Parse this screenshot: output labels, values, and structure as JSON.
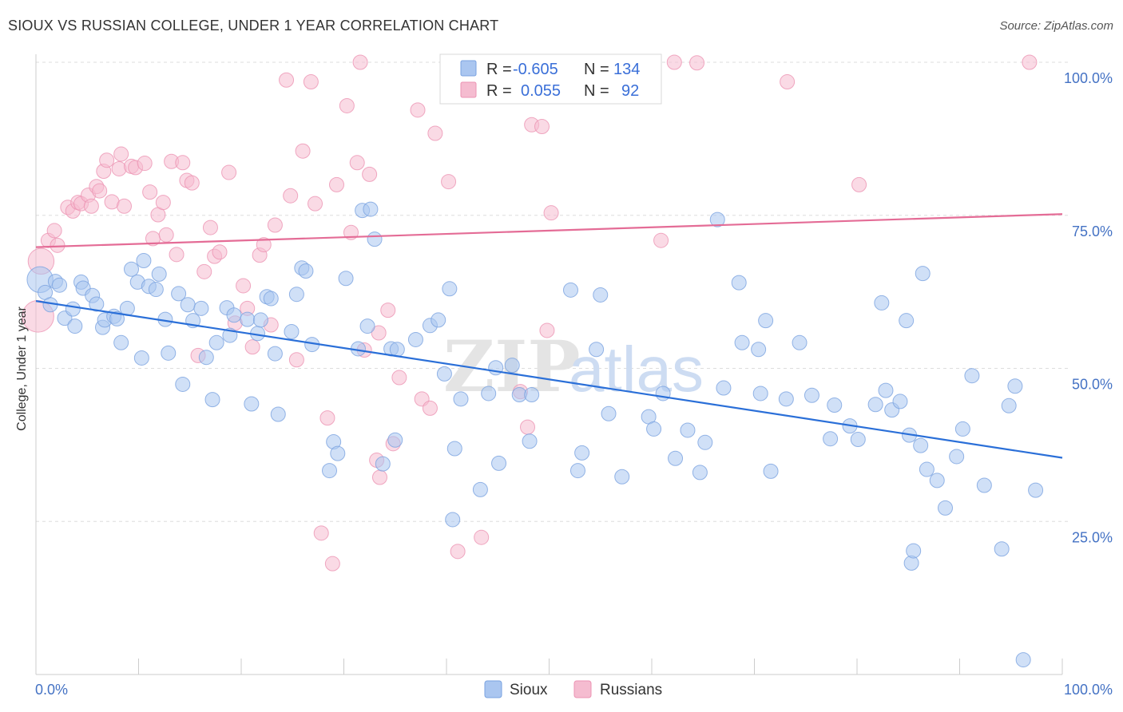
{
  "title": "SIOUX VS RUSSIAN COLLEGE, UNDER 1 YEAR CORRELATION CHART",
  "source": "Source: ZipAtlas.com",
  "watermark": {
    "zip": "ZIP",
    "atlas": "atlas"
  },
  "colors": {
    "sioux_fill": "#aac6f0",
    "sioux_stroke": "#7aa3e0",
    "sioux_line": "#2a6fd8",
    "russians_fill": "#f5bcd0",
    "russians_stroke": "#ec93b3",
    "russians_line": "#e46c96",
    "tick_label": "#4472c4",
    "grid": "#dddddd"
  },
  "legend": {
    "rows": [
      {
        "r_label": "R =",
        "r_value": "-0.605",
        "n_label": "N =",
        "n_value": "134"
      },
      {
        "r_label": "R =",
        "r_value": "0.055",
        "n_label": "N =",
        "n_value": "92"
      }
    ]
  },
  "bottom_legend": [
    "Sioux",
    "Russians"
  ],
  "chart_data": {
    "type": "scatter",
    "title": "SIOUX VS RUSSIAN COLLEGE, UNDER 1 YEAR CORRELATION CHART",
    "xlabel": "",
    "ylabel": "College, Under 1 year",
    "xlim": [
      0,
      100
    ],
    "ylim": [
      0,
      100
    ],
    "x_tick_labels": [
      "0.0%",
      "100.0%"
    ],
    "y_tick_labels": [
      "100.0%",
      "75.0%",
      "50.0%",
      "25.0%"
    ],
    "y_ticks": [
      100,
      75,
      50,
      25
    ],
    "grid": true,
    "series": [
      {
        "name": "Sioux",
        "trend": {
          "x": [
            0,
            100
          ],
          "y": [
            61.0,
            35.4
          ]
        },
        "points": [
          [
            0.4,
            64.5,
            1.8
          ],
          [
            0.9,
            62.4,
            1
          ],
          [
            1.4,
            60.4,
            1
          ],
          [
            1.9,
            64.2,
            1
          ],
          [
            2.3,
            63.6,
            1
          ],
          [
            2.8,
            58.2,
            1
          ],
          [
            3.6,
            59.7,
            1
          ],
          [
            3.8,
            56.9,
            1
          ],
          [
            4.4,
            64.1,
            1
          ],
          [
            4.6,
            63.1,
            1
          ],
          [
            5.5,
            61.9,
            1
          ],
          [
            5.9,
            60.5,
            1
          ],
          [
            6.5,
            56.7,
            1
          ],
          [
            6.7,
            57.9,
            1
          ],
          [
            7.6,
            58.5,
            1
          ],
          [
            7.9,
            58.1,
            1
          ],
          [
            8.3,
            54.2,
            1
          ],
          [
            8.9,
            59.8,
            1
          ],
          [
            9.3,
            66.2,
            1
          ],
          [
            9.9,
            64.1,
            1
          ],
          [
            10.3,
            51.7,
            1
          ],
          [
            10.5,
            67.6,
            1
          ],
          [
            11.0,
            63.4,
            1
          ],
          [
            11.7,
            62.9,
            1
          ],
          [
            12.0,
            65.4,
            1
          ],
          [
            12.6,
            58.0,
            1
          ],
          [
            12.9,
            52.5,
            1
          ],
          [
            13.9,
            62.2,
            1
          ],
          [
            14.3,
            47.4,
            1
          ],
          [
            14.8,
            60.4,
            1
          ],
          [
            15.3,
            57.8,
            1
          ],
          [
            16.1,
            59.8,
            1
          ],
          [
            16.6,
            51.8,
            1
          ],
          [
            17.2,
            44.9,
            1
          ],
          [
            17.6,
            54.2,
            1
          ],
          [
            18.6,
            59.9,
            1
          ],
          [
            18.9,
            55.4,
            1
          ],
          [
            19.3,
            58.7,
            1
          ],
          [
            20.6,
            58.0,
            1
          ],
          [
            21.0,
            44.2,
            1
          ],
          [
            21.6,
            55.7,
            1
          ],
          [
            21.9,
            57.9,
            1
          ],
          [
            22.5,
            61.7,
            1
          ],
          [
            22.9,
            61.4,
            1
          ],
          [
            23.3,
            52.4,
            1
          ],
          [
            23.6,
            42.5,
            1
          ],
          [
            24.9,
            56.0,
            1
          ],
          [
            25.4,
            62.1,
            1
          ],
          [
            25.9,
            66.4,
            1
          ],
          [
            26.3,
            65.9,
            1
          ],
          [
            26.9,
            53.9,
            1
          ],
          [
            29.0,
            38.0,
            1
          ],
          [
            28.6,
            33.3,
            1
          ],
          [
            29.4,
            36.1,
            1
          ],
          [
            30.2,
            64.7,
            1
          ],
          [
            31.4,
            53.2,
            1
          ],
          [
            31.8,
            75.8,
            1
          ],
          [
            32.3,
            56.9,
            1
          ],
          [
            32.6,
            76.0,
            1
          ],
          [
            33.0,
            71.1,
            1
          ],
          [
            33.8,
            34.4,
            1
          ],
          [
            34.6,
            53.2,
            1
          ],
          [
            35.0,
            38.3,
            1
          ],
          [
            35.2,
            53.1,
            1
          ],
          [
            37.0,
            54.7,
            1
          ],
          [
            38.4,
            57.0,
            1
          ],
          [
            39.2,
            57.9,
            1
          ],
          [
            39.8,
            49.1,
            1
          ],
          [
            40.3,
            63.0,
            1
          ],
          [
            40.6,
            25.3,
            1
          ],
          [
            40.8,
            36.9,
            1
          ],
          [
            41.4,
            45.0,
            1
          ],
          [
            43.3,
            30.2,
            1
          ],
          [
            44.1,
            45.9,
            1
          ],
          [
            44.8,
            50.1,
            1
          ],
          [
            45.1,
            34.5,
            1
          ],
          [
            46.4,
            50.5,
            1
          ],
          [
            47.1,
            45.7,
            1
          ],
          [
            48.1,
            38.1,
            1
          ],
          [
            48.3,
            45.7,
            1
          ],
          [
            52.1,
            62.8,
            1
          ],
          [
            52.8,
            33.3,
            1
          ],
          [
            53.2,
            36.2,
            1
          ],
          [
            54.6,
            53.1,
            1
          ],
          [
            55.0,
            62.0,
            1
          ],
          [
            55.8,
            42.6,
            1
          ],
          [
            57.1,
            32.3,
            1
          ],
          [
            59.7,
            42.1,
            1
          ],
          [
            60.2,
            40.1,
            1
          ],
          [
            61.1,
            45.9,
            1
          ],
          [
            62.3,
            35.3,
            1
          ],
          [
            63.5,
            39.9,
            1
          ],
          [
            64.7,
            33.0,
            1
          ],
          [
            65.2,
            37.9,
            1
          ],
          [
            66.4,
            74.3,
            1
          ],
          [
            67.0,
            46.8,
            1
          ],
          [
            68.5,
            64.0,
            1
          ],
          [
            68.8,
            54.2,
            1
          ],
          [
            70.4,
            53.1,
            1
          ],
          [
            70.6,
            45.9,
            1
          ],
          [
            71.1,
            57.8,
            1
          ],
          [
            71.6,
            33.2,
            1
          ],
          [
            73.1,
            45.0,
            1
          ],
          [
            74.4,
            54.2,
            1
          ],
          [
            75.6,
            45.6,
            1
          ],
          [
            77.4,
            38.5,
            1
          ],
          [
            77.8,
            44.0,
            1
          ],
          [
            79.3,
            40.6,
            1
          ],
          [
            80.1,
            38.4,
            1
          ],
          [
            81.8,
            44.1,
            1
          ],
          [
            82.4,
            60.7,
            1
          ],
          [
            82.8,
            46.4,
            1
          ],
          [
            83.4,
            43.2,
            1
          ],
          [
            84.2,
            44.6,
            1
          ],
          [
            84.8,
            57.8,
            1
          ],
          [
            85.1,
            39.1,
            1
          ],
          [
            85.3,
            18.2,
            1
          ],
          [
            85.5,
            20.2,
            1
          ],
          [
            86.2,
            37.4,
            1
          ],
          [
            86.4,
            65.5,
            1
          ],
          [
            86.8,
            33.5,
            1
          ],
          [
            87.8,
            31.7,
            1
          ],
          [
            88.6,
            27.2,
            1
          ],
          [
            89.7,
            35.6,
            1
          ],
          [
            90.3,
            40.1,
            1
          ],
          [
            91.2,
            48.8,
            1
          ],
          [
            92.4,
            30.9,
            1
          ],
          [
            94.1,
            20.5,
            1
          ],
          [
            94.8,
            43.9,
            1
          ],
          [
            95.4,
            47.1,
            1
          ],
          [
            96.2,
            2.4,
            1
          ],
          [
            97.4,
            30.1,
            1
          ]
        ]
      },
      {
        "name": "Russians",
        "trend": {
          "x": [
            0,
            100
          ],
          "y": [
            69.8,
            75.2
          ]
        },
        "points": [
          [
            0.2,
            58.5,
            2.2
          ],
          [
            0.5,
            67.5,
            1.8
          ],
          [
            1.2,
            70.9,
            1
          ],
          [
            1.8,
            72.5,
            1
          ],
          [
            2.1,
            70.1,
            1
          ],
          [
            3.1,
            76.3,
            1
          ],
          [
            3.6,
            75.7,
            1
          ],
          [
            4.1,
            77.1,
            1
          ],
          [
            4.4,
            76.9,
            1
          ],
          [
            5.1,
            78.3,
            1
          ],
          [
            5.4,
            76.5,
            1
          ],
          [
            5.9,
            79.7,
            1
          ],
          [
            6.2,
            79.0,
            1
          ],
          [
            6.6,
            82.2,
            1
          ],
          [
            6.9,
            84.0,
            1
          ],
          [
            7.4,
            77.2,
            1
          ],
          [
            8.1,
            82.6,
            1
          ],
          [
            8.3,
            85.0,
            1
          ],
          [
            8.6,
            76.5,
            1
          ],
          [
            9.3,
            83.0,
            1
          ],
          [
            9.7,
            82.8,
            1
          ],
          [
            10.6,
            83.5,
            1
          ],
          [
            11.1,
            78.8,
            1
          ],
          [
            11.4,
            71.2,
            1
          ],
          [
            11.9,
            75.1,
            1
          ],
          [
            12.4,
            77.1,
            1
          ],
          [
            12.7,
            71.8,
            1
          ],
          [
            13.2,
            83.8,
            1
          ],
          [
            13.7,
            68.6,
            1
          ],
          [
            14.3,
            83.6,
            1
          ],
          [
            14.7,
            80.7,
            1
          ],
          [
            15.2,
            80.3,
            1
          ],
          [
            15.8,
            52.1,
            1
          ],
          [
            16.4,
            65.8,
            1
          ],
          [
            17.0,
            73.0,
            1
          ],
          [
            17.4,
            68.3,
            1
          ],
          [
            17.9,
            69.0,
            1
          ],
          [
            18.8,
            82.0,
            1
          ],
          [
            19.4,
            57.4,
            1
          ],
          [
            20.2,
            63.5,
            1
          ],
          [
            20.6,
            59.8,
            1
          ],
          [
            21.1,
            53.5,
            1
          ],
          [
            21.8,
            68.5,
            1
          ],
          [
            22.2,
            70.2,
            1
          ],
          [
            22.9,
            57.1,
            1
          ],
          [
            23.3,
            73.4,
            1
          ],
          [
            24.4,
            97.1,
            1
          ],
          [
            24.8,
            78.2,
            1
          ],
          [
            25.4,
            51.4,
            1
          ],
          [
            26.0,
            85.5,
            1
          ],
          [
            26.8,
            96.8,
            1
          ],
          [
            27.2,
            76.9,
            1
          ],
          [
            28.4,
            41.9,
            1
          ],
          [
            28.9,
            18.1,
            1
          ],
          [
            29.3,
            80.0,
            1
          ],
          [
            30.3,
            92.9,
            1
          ],
          [
            30.7,
            72.2,
            1
          ],
          [
            31.3,
            83.6,
            1
          ],
          [
            31.6,
            100.0,
            1
          ],
          [
            32.0,
            53.0,
            1
          ],
          [
            32.5,
            81.7,
            1
          ],
          [
            33.4,
            55.8,
            1
          ],
          [
            34.3,
            59.5,
            1
          ],
          [
            34.8,
            37.7,
            1
          ],
          [
            35.4,
            48.5,
            1
          ],
          [
            37.2,
            92.2,
            1
          ],
          [
            37.6,
            45.0,
            1
          ],
          [
            38.4,
            43.5,
            1
          ],
          [
            38.9,
            88.4,
            1
          ],
          [
            40.2,
            80.5,
            1
          ],
          [
            41.1,
            20.1,
            1
          ],
          [
            43.4,
            22.4,
            1
          ],
          [
            47.2,
            46.2,
            1
          ],
          [
            47.9,
            40.4,
            1
          ],
          [
            48.3,
            89.8,
            1
          ],
          [
            49.3,
            89.5,
            1
          ],
          [
            50.2,
            75.4,
            1
          ],
          [
            51.6,
            100.0,
            1
          ],
          [
            55.7,
            100.0,
            1
          ],
          [
            56.0,
            99.7,
            1
          ],
          [
            60.9,
            70.9,
            1
          ],
          [
            62.2,
            100.0,
            1
          ],
          [
            64.4,
            99.9,
            1
          ],
          [
            73.2,
            96.8,
            1
          ],
          [
            80.2,
            80.0,
            1
          ],
          [
            33.2,
            35.0,
            1
          ],
          [
            27.8,
            23.1,
            1
          ],
          [
            33.5,
            32.2,
            1
          ],
          [
            49.8,
            56.2,
            1
          ],
          [
            96.8,
            100.0,
            1
          ],
          [
            59.5,
            100.0,
            1
          ]
        ]
      }
    ]
  }
}
